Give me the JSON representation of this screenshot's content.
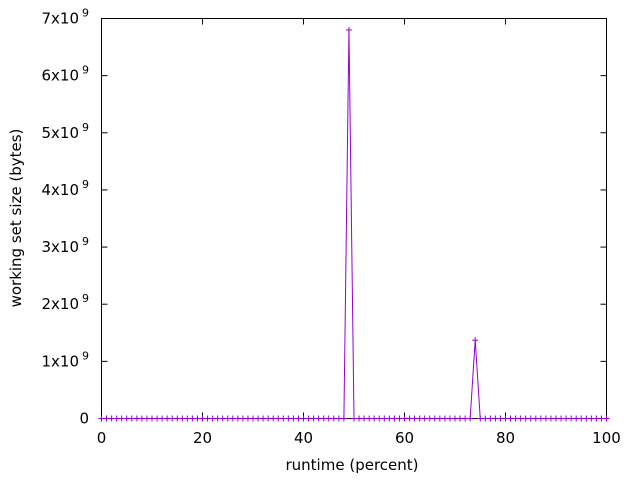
{
  "chart_data": {
    "type": "line",
    "title": "",
    "xlabel": "runtime (percent)",
    "ylabel": "working set size (bytes)",
    "xlim": [
      0,
      100
    ],
    "ylim": [
      0,
      7000000000
    ],
    "x_ticks": [
      {
        "value": 0,
        "label": "0"
      },
      {
        "value": 20,
        "label": "20"
      },
      {
        "value": 40,
        "label": "40"
      },
      {
        "value": 60,
        "label": "60"
      },
      {
        "value": 80,
        "label": "80"
      },
      {
        "value": 100,
        "label": "100"
      }
    ],
    "y_ticks": [
      {
        "value": 0,
        "mantissa": "0",
        "exponent": ""
      },
      {
        "value": 1000000000,
        "mantissa": "1x10",
        "exponent": "9"
      },
      {
        "value": 2000000000,
        "mantissa": "2x10",
        "exponent": "9"
      },
      {
        "value": 3000000000,
        "mantissa": "3x10",
        "exponent": "9"
      },
      {
        "value": 4000000000,
        "mantissa": "4x10",
        "exponent": "9"
      },
      {
        "value": 5000000000,
        "mantissa": "5x10",
        "exponent": "9"
      },
      {
        "value": 6000000000,
        "mantissa": "6x10",
        "exponent": "9"
      },
      {
        "value": 7000000000,
        "mantissa": "7x10",
        "exponent": "9"
      }
    ],
    "grid": false,
    "legend": "none",
    "series": [
      {
        "color": "#9400d3",
        "marker": "plus",
        "points": [
          [
            0,
            0
          ],
          [
            1,
            0
          ],
          [
            2,
            0
          ],
          [
            3,
            0
          ],
          [
            4,
            0
          ],
          [
            5,
            0
          ],
          [
            6,
            0
          ],
          [
            7,
            0
          ],
          [
            8,
            0
          ],
          [
            9,
            0
          ],
          [
            10,
            0
          ],
          [
            11,
            0
          ],
          [
            12,
            0
          ],
          [
            13,
            0
          ],
          [
            14,
            0
          ],
          [
            15,
            0
          ],
          [
            16,
            0
          ],
          [
            17,
            0
          ],
          [
            18,
            0
          ],
          [
            19,
            0
          ],
          [
            20,
            0
          ],
          [
            21,
            0
          ],
          [
            22,
            0
          ],
          [
            23,
            0
          ],
          [
            24,
            0
          ],
          [
            25,
            0
          ],
          [
            26,
            0
          ],
          [
            27,
            0
          ],
          [
            28,
            0
          ],
          [
            29,
            0
          ],
          [
            30,
            0
          ],
          [
            31,
            0
          ],
          [
            32,
            0
          ],
          [
            33,
            0
          ],
          [
            34,
            0
          ],
          [
            35,
            0
          ],
          [
            36,
            0
          ],
          [
            37,
            0
          ],
          [
            38,
            0
          ],
          [
            39,
            0
          ],
          [
            40,
            0
          ],
          [
            41,
            0
          ],
          [
            42,
            0
          ],
          [
            43,
            0
          ],
          [
            44,
            0
          ],
          [
            45,
            0
          ],
          [
            46,
            0
          ],
          [
            47,
            0
          ],
          [
            48,
            0
          ],
          [
            49,
            6800000000
          ],
          [
            50,
            0
          ],
          [
            51,
            0
          ],
          [
            52,
            0
          ],
          [
            53,
            0
          ],
          [
            54,
            0
          ],
          [
            55,
            0
          ],
          [
            56,
            0
          ],
          [
            57,
            0
          ],
          [
            58,
            0
          ],
          [
            59,
            0
          ],
          [
            60,
            0
          ],
          [
            61,
            0
          ],
          [
            62,
            0
          ],
          [
            63,
            0
          ],
          [
            64,
            0
          ],
          [
            65,
            0
          ],
          [
            66,
            0
          ],
          [
            67,
            0
          ],
          [
            68,
            0
          ],
          [
            69,
            0
          ],
          [
            70,
            0
          ],
          [
            71,
            0
          ],
          [
            72,
            0
          ],
          [
            73,
            0
          ],
          [
            74,
            1370000000
          ],
          [
            75,
            0
          ],
          [
            76,
            0
          ],
          [
            77,
            0
          ],
          [
            78,
            0
          ],
          [
            79,
            0
          ],
          [
            80,
            0
          ],
          [
            81,
            0
          ],
          [
            82,
            0
          ],
          [
            83,
            0
          ],
          [
            84,
            0
          ],
          [
            85,
            0
          ],
          [
            86,
            0
          ],
          [
            87,
            0
          ],
          [
            88,
            0
          ],
          [
            89,
            0
          ],
          [
            90,
            0
          ],
          [
            91,
            0
          ],
          [
            92,
            0
          ],
          [
            93,
            0
          ],
          [
            94,
            0
          ],
          [
            95,
            0
          ],
          [
            96,
            0
          ],
          [
            97,
            0
          ],
          [
            98,
            0
          ],
          [
            99,
            0
          ],
          [
            100,
            0
          ]
        ]
      }
    ]
  }
}
